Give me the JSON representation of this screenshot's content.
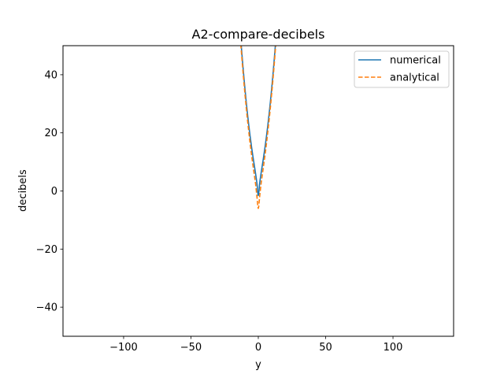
{
  "chart_data": {
    "type": "line",
    "title": "A2-compare-decibels",
    "xlabel": "y",
    "ylabel": "decibels",
    "xlim": [
      -145,
      145
    ],
    "ylim": [
      -50,
      50
    ],
    "xticks": [
      -100,
      -50,
      0,
      50,
      100
    ],
    "yticks": [
      -40,
      -20,
      0,
      20,
      40
    ],
    "xtick_labels": [
      "−100",
      "−50",
      "0",
      "50",
      "100"
    ],
    "ytick_labels": [
      "−40",
      "−20",
      "0",
      "20",
      "40"
    ],
    "grid": false,
    "legend_position": "top-right",
    "series": [
      {
        "name": "numerical",
        "style": "solid",
        "color": "#1f77b4",
        "x": [
          -13,
          -12,
          -11,
          -10,
          -9,
          -8,
          -7,
          -6,
          -5,
          -4,
          -3,
          -2,
          -1,
          0,
          1,
          2,
          3,
          4,
          5,
          6,
          7,
          8,
          9,
          10,
          11,
          12,
          13
        ],
        "y": [
          52.1,
          46.2,
          40.7,
          35.6,
          30.8,
          26.4,
          22.3,
          18.6,
          15.1,
          11.9,
          8.9,
          5.9,
          2.6,
          -1.6,
          2.6,
          5.9,
          8.9,
          11.9,
          15.1,
          18.6,
          22.3,
          26.4,
          30.8,
          35.6,
          40.7,
          46.2,
          52.1
        ]
      },
      {
        "name": "analytical",
        "style": "dashed",
        "color": "#ff7f0e",
        "x": [
          -13,
          -12,
          -11,
          -10,
          -9,
          -8,
          -7,
          -6,
          -5,
          -4,
          -3,
          -2,
          -1,
          0,
          1,
          2,
          3,
          4,
          5,
          6,
          7,
          8,
          9,
          10,
          11,
          12,
          13
        ],
        "y": [
          50.5,
          44.6,
          39.0,
          33.8,
          28.9,
          24.3,
          20.1,
          16.1,
          12.4,
          9.0,
          5.7,
          2.3,
          -2.0,
          -6.0,
          -2.0,
          2.3,
          5.7,
          9.0,
          12.4,
          16.1,
          20.1,
          24.3,
          28.9,
          33.8,
          39.0,
          44.6,
          50.5
        ]
      }
    ]
  }
}
